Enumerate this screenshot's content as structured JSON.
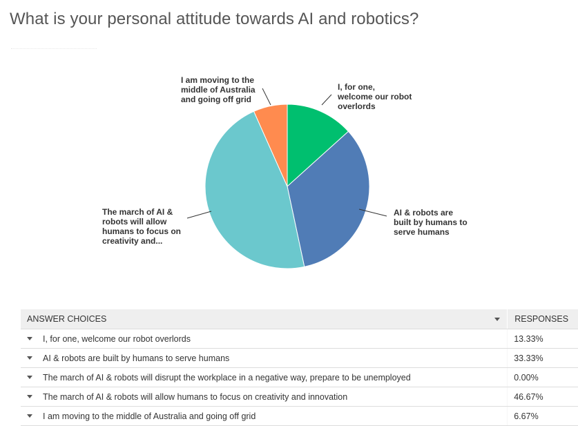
{
  "question": {
    "title": "What is your personal attitude towards AI and robotics?"
  },
  "chart_data": {
    "type": "pie",
    "slices": [
      {
        "label": "I, for one, welcome our robot overlords",
        "chart_label_lines": [
          "I, for one,",
          "welcome our robot",
          "overlords"
        ],
        "value": 13.33,
        "color": "#00bf6f"
      },
      {
        "label": "AI & robots are built by humans to serve humans",
        "chart_label_lines": [
          "AI & robots are",
          "built by humans to",
          "serve humans"
        ],
        "value": 33.33,
        "color": "#507cb6"
      },
      {
        "label": "The march of AI & robots will disrupt the workplace in a negative way, prepare to be unemployed",
        "chart_label_lines": [],
        "value": 0.0,
        "color": "#f9be00"
      },
      {
        "label": "The march of AI & robots will allow humans to focus on creativity and innovation",
        "chart_label_lines": [
          "The march of AI &",
          "robots will allow",
          "humans to focus on",
          "creativity and..."
        ],
        "value": 46.67,
        "color": "#6bc8cd"
      },
      {
        "label": "I am moving to the middle of Australia and going off grid",
        "chart_label_lines": [
          "I am moving to the",
          "middle of Australia",
          "and going off grid"
        ],
        "value": 6.67,
        "color": "#ff8b4f"
      }
    ]
  },
  "table": {
    "header_choices": "ANSWER CHOICES",
    "header_responses": "RESPONSES",
    "rows": [
      {
        "choice": "I, for one, welcome our robot overlords",
        "response": "13.33%"
      },
      {
        "choice": "AI & robots are built by humans to serve humans",
        "response": "33.33%"
      },
      {
        "choice": "The march of AI & robots will disrupt the workplace in a negative way, prepare to be unemployed",
        "response": "0.00%"
      },
      {
        "choice": "The march of AI & robots will allow humans to focus on creativity and innovation",
        "response": "46.67%"
      },
      {
        "choice": "I am moving to the middle of Australia and going off grid",
        "response": "6.67%"
      }
    ]
  }
}
